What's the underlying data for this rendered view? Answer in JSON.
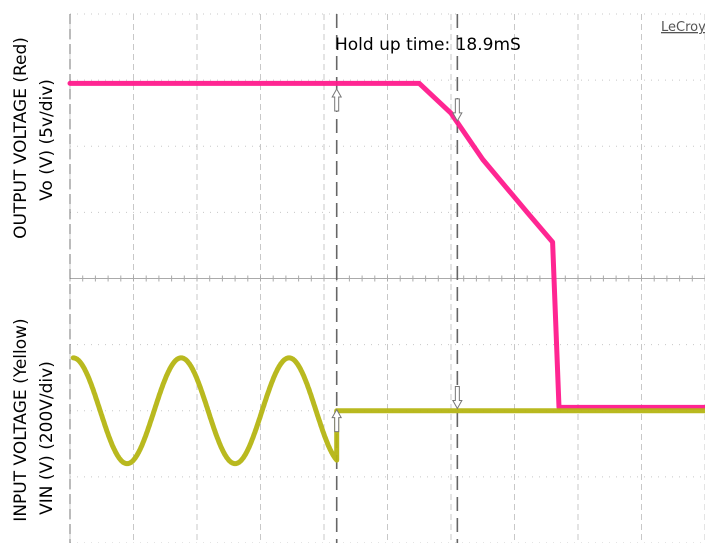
{
  "chart_data": {
    "type": "line",
    "title": "",
    "annotation": "Hold up time: 18.9mS",
    "brand": "LeCroy",
    "ylabel_top": "OUTPUT VOLTAGE (Red)",
    "ylabel_top_unit": "Vo (V) (5v/div)",
    "ylabel_bottom": "INPUT VOLTAGE (Yellow)",
    "ylabel_bottom_unit": "VIN (V) (200V/div)",
    "grid": true,
    "x_divisions": 10,
    "y_divisions": 8,
    "x_range_div": [
      0,
      10
    ],
    "y_range_div": [
      -4,
      4
    ],
    "cursors_div": [
      4.2,
      6.1
    ],
    "series": [
      {
        "name": "Output voltage",
        "color": "#ff1a8c",
        "x_div": [
          0,
          5.5,
          6.0,
          6.5,
          7.2,
          7.6,
          7.7,
          10
        ],
        "y_div": [
          2.95,
          2.95,
          2.5,
          1.8,
          1.0,
          0.55,
          -1.95,
          -1.95
        ]
      },
      {
        "name": "Input voltage",
        "color": "#b5b513",
        "sine": {
          "x_start_div": 0.05,
          "x_end_div": 4.2,
          "period_div": 1.7,
          "amplitude_div": 0.8,
          "offset_div": -2.0,
          "phase_deg": 90
        },
        "x_div": [
          4.2,
          10
        ],
        "y_div": [
          -2.0,
          -2.0
        ]
      }
    ],
    "arrows": [
      {
        "x_div": 4.2,
        "y_div": 2.7,
        "dir": "up"
      },
      {
        "x_div": 6.1,
        "y_div": 2.55,
        "dir": "down"
      },
      {
        "x_div": 4.2,
        "y_div": -2.15,
        "dir": "up"
      },
      {
        "x_div": 6.1,
        "y_div": -1.8,
        "dir": "down"
      }
    ]
  }
}
